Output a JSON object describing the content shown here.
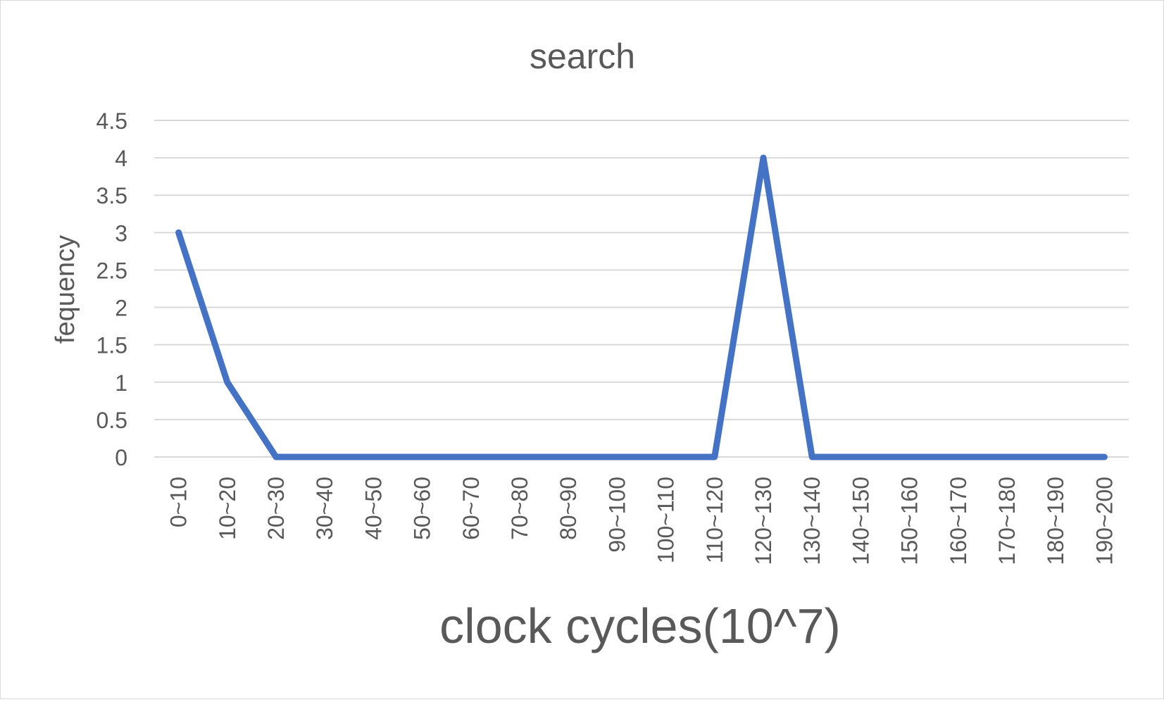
{
  "chart_data": {
    "type": "line",
    "title": "search",
    "xlabel": "clock cycles(10^7)",
    "ylabel": "fequency",
    "categories": [
      "0~10",
      "10~20",
      "20~30",
      "30~40",
      "40~50",
      "50~60",
      "60~70",
      "70~80",
      "80~90",
      "90~100",
      "100~110",
      "110~120",
      "120~130",
      "130~140",
      "140~150",
      "150~160",
      "160~170",
      "170~180",
      "180~190",
      "190~200"
    ],
    "series": [
      {
        "values": [
          3,
          1,
          0,
          0,
          0,
          0,
          0,
          0,
          0,
          0,
          0,
          0,
          4,
          0,
          0,
          0,
          0,
          0,
          0,
          0
        ]
      }
    ],
    "ylim": [
      0,
      4.5
    ],
    "yticks": [
      "0",
      "0.5",
      "1",
      "1.5",
      "2",
      "2.5",
      "3",
      "3.5",
      "4",
      "4.5"
    ],
    "grid": true,
    "legend": "none",
    "colors": {
      "line": "#4472c4",
      "grid": "#d9d9d9",
      "text": "#595959"
    }
  }
}
